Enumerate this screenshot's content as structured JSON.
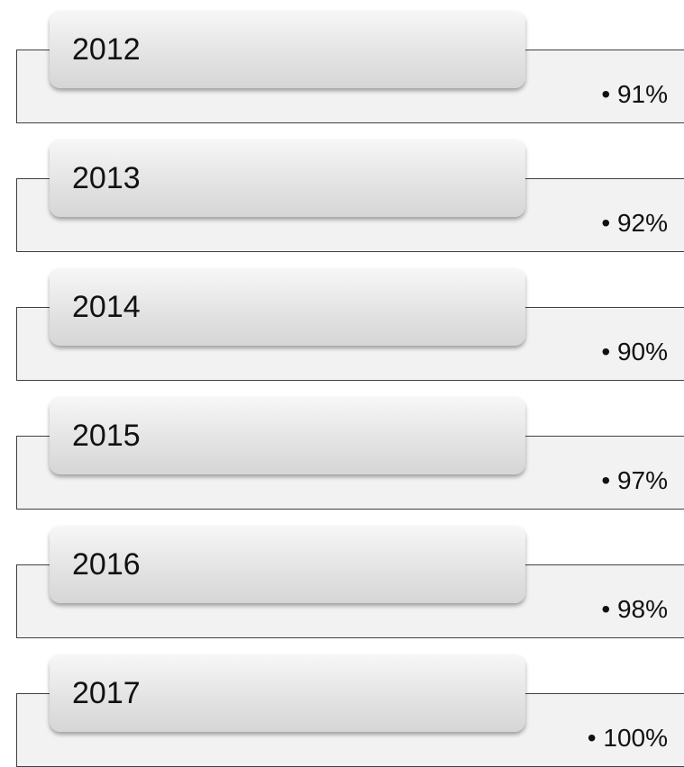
{
  "items": [
    {
      "label": "2012",
      "text": "91%"
    },
    {
      "label": "2013",
      "text": "92%"
    },
    {
      "label": "2014",
      "text": "90%"
    },
    {
      "label": "2015",
      "text": "97%"
    },
    {
      "label": "2016",
      "text": "98%"
    },
    {
      "label": "2017",
      "text": "100%"
    }
  ]
}
